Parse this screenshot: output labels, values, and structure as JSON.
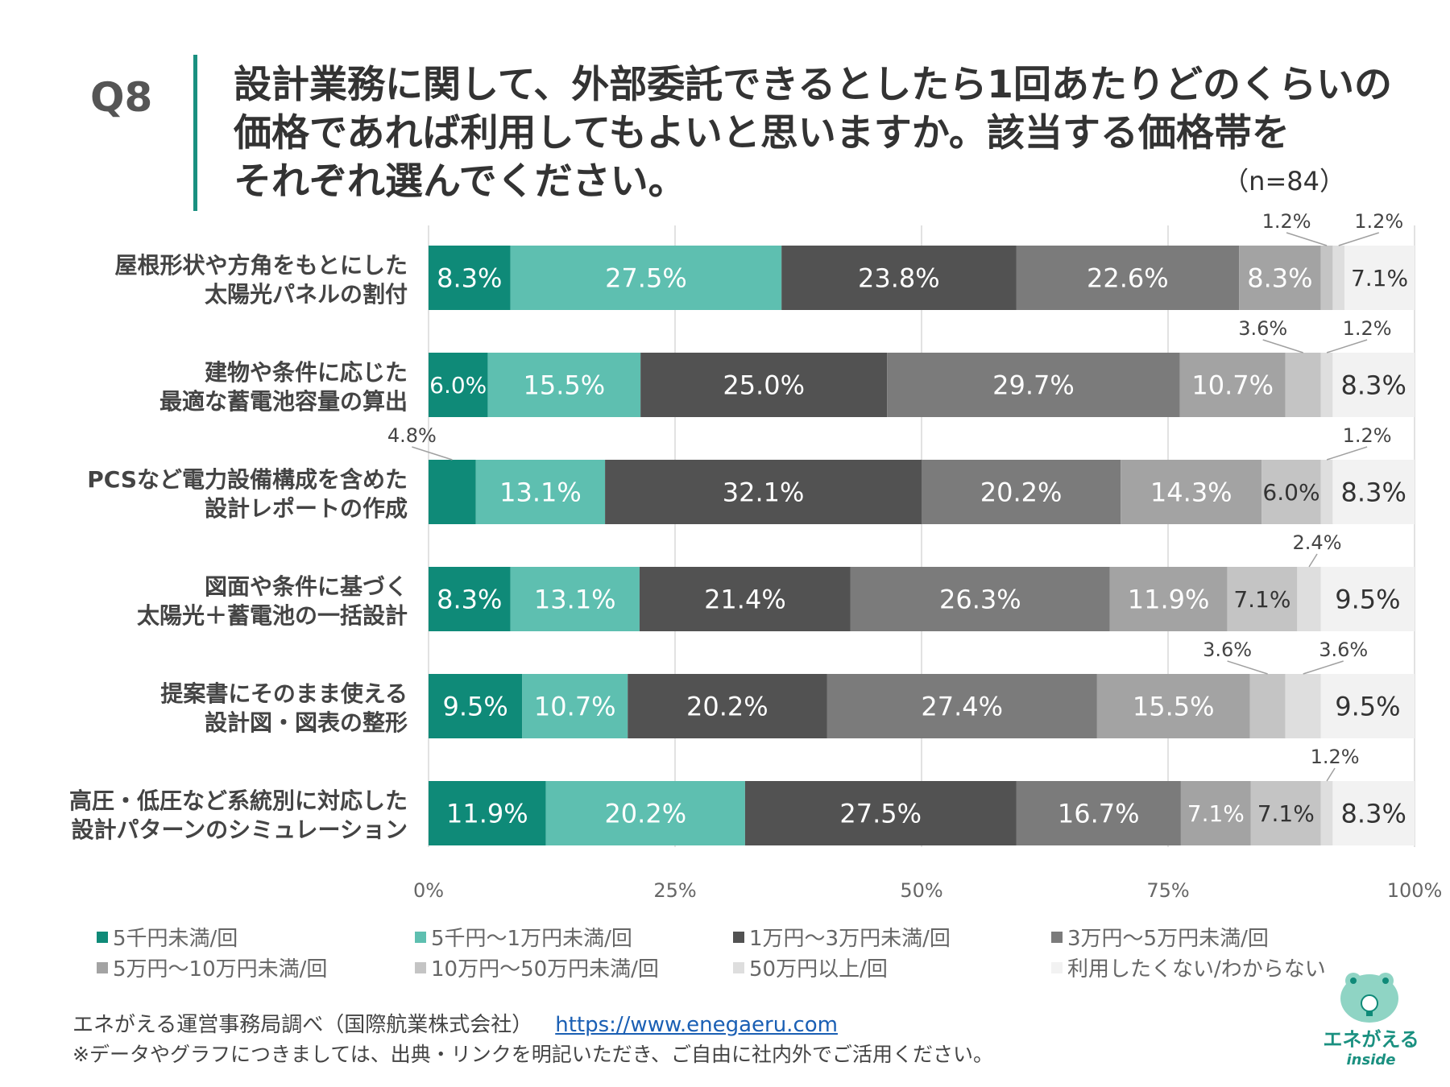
{
  "header": {
    "question_number": "Q8",
    "title_lines": [
      "設計業務に関して、外部委託できるとしたら1回あたりどのくらいの",
      "価格であれば利用してもよいと思いますか。該当する価格帯を",
      "それぞれ選んでください。"
    ],
    "sample_size": "（n=84）"
  },
  "chart_data": {
    "type": "stacked-bar-horizontal",
    "xlim": [
      0,
      100
    ],
    "x_ticks": [
      "0%",
      "25%",
      "50%",
      "75%",
      "100%"
    ],
    "categories": [
      [
        "屋根形状や方角をもとにした",
        "太陽光パネルの割付"
      ],
      [
        "建物や条件に応じた",
        "最適な蓄電池容量の算出"
      ],
      [
        "PCSなど電力設備構成を含めた",
        "設計レポートの作成"
      ],
      [
        "図面や条件に基づく",
        "太陽光＋蓄電池の一括設計"
      ],
      [
        "提案書にそのまま使える",
        "設計図・図表の整形"
      ],
      [
        "高圧・低圧など系統別に対応した",
        "設計パターンのシミュレーション"
      ]
    ],
    "series": [
      {
        "name": "5千円未満/回",
        "color": "#0f8a78",
        "text_color": "#ffffff",
        "values": [
          8.3,
          6.0,
          4.8,
          8.3,
          9.5,
          11.9
        ]
      },
      {
        "name": "5千円～1万円未満/回",
        "color": "#5ebfb0",
        "text_color": "#ffffff",
        "values": [
          27.5,
          15.5,
          13.1,
          13.1,
          10.7,
          20.2
        ]
      },
      {
        "name": "1万円～3万円未満/回",
        "color": "#525252",
        "text_color": "#ffffff",
        "values": [
          23.8,
          25.0,
          32.1,
          21.4,
          20.2,
          27.5
        ]
      },
      {
        "name": "3万円～5万円未満/回",
        "color": "#7b7b7b",
        "text_color": "#ffffff",
        "values": [
          22.6,
          29.7,
          20.2,
          26.3,
          27.4,
          16.7
        ]
      },
      {
        "name": "5万円～10万円未満/回",
        "color": "#a3a3a3",
        "text_color": "#ffffff",
        "values": [
          8.3,
          10.7,
          14.3,
          11.9,
          15.5,
          7.1
        ]
      },
      {
        "name": "10万円～50万円未満/回",
        "color": "#c4c4c4",
        "text_color": "#333333",
        "values": [
          1.2,
          3.6,
          6.0,
          7.1,
          3.6,
          7.1
        ]
      },
      {
        "name": "50万円以上/回",
        "color": "#dedede",
        "text_color": "#333333",
        "values": [
          1.2,
          1.2,
          1.2,
          2.4,
          3.6,
          1.2
        ]
      },
      {
        "name": "利用したくない/わからない",
        "color": "#f2f2f2",
        "text_color": "#333333",
        "values": [
          7.1,
          8.3,
          8.3,
          9.5,
          9.5,
          8.3
        ]
      }
    ],
    "bar_labels": [
      [
        "8.3%",
        "27.5%",
        "23.8%",
        "22.6%",
        "8.3%",
        "",
        "",
        "7.1%"
      ],
      [
        "6.0%",
        "15.5%",
        "25.0%",
        "29.7%",
        "10.7%",
        "",
        "",
        "8.3%"
      ],
      [
        "",
        "13.1%",
        "32.1%",
        "20.2%",
        "14.3%",
        "6.0%",
        "",
        "8.3%"
      ],
      [
        "8.3%",
        "13.1%",
        "21.4%",
        "26.3%",
        "11.9%",
        "7.1%",
        "",
        "9.5%"
      ],
      [
        "9.5%",
        "10.7%",
        "20.2%",
        "27.4%",
        "15.5%",
        "",
        "",
        "9.5%"
      ],
      [
        "11.9%",
        "20.2%",
        "27.5%",
        "16.7%",
        "7.1%",
        "7.1%",
        "",
        "8.3%"
      ]
    ],
    "callouts": [
      {
        "row": 0,
        "series": 5,
        "label": "1.2%"
      },
      {
        "row": 0,
        "series": 6,
        "label": "1.2%"
      },
      {
        "row": 1,
        "series": 5,
        "label": "3.6%"
      },
      {
        "row": 1,
        "series": 6,
        "label": "1.2%"
      },
      {
        "row": 2,
        "series": 0,
        "label": "4.8%"
      },
      {
        "row": 2,
        "series": 6,
        "label": "1.2%"
      },
      {
        "row": 3,
        "series": 6,
        "label": "2.4%"
      },
      {
        "row": 4,
        "series": 5,
        "label": "3.6%"
      },
      {
        "row": 4,
        "series": 6,
        "label": "3.6%"
      },
      {
        "row": 5,
        "series": 6,
        "label": "1.2%"
      }
    ]
  },
  "footer": {
    "source": "エネがえる運営事務局調べ（国際航業株式会社）",
    "url": "https://www.enegaeru.com",
    "note": "※データやグラフにつきましては、出典・リンクを明記いただき、ご自由に社内外でご活用ください。",
    "logo_text": "エネがえる",
    "logo_sub": "inside"
  }
}
